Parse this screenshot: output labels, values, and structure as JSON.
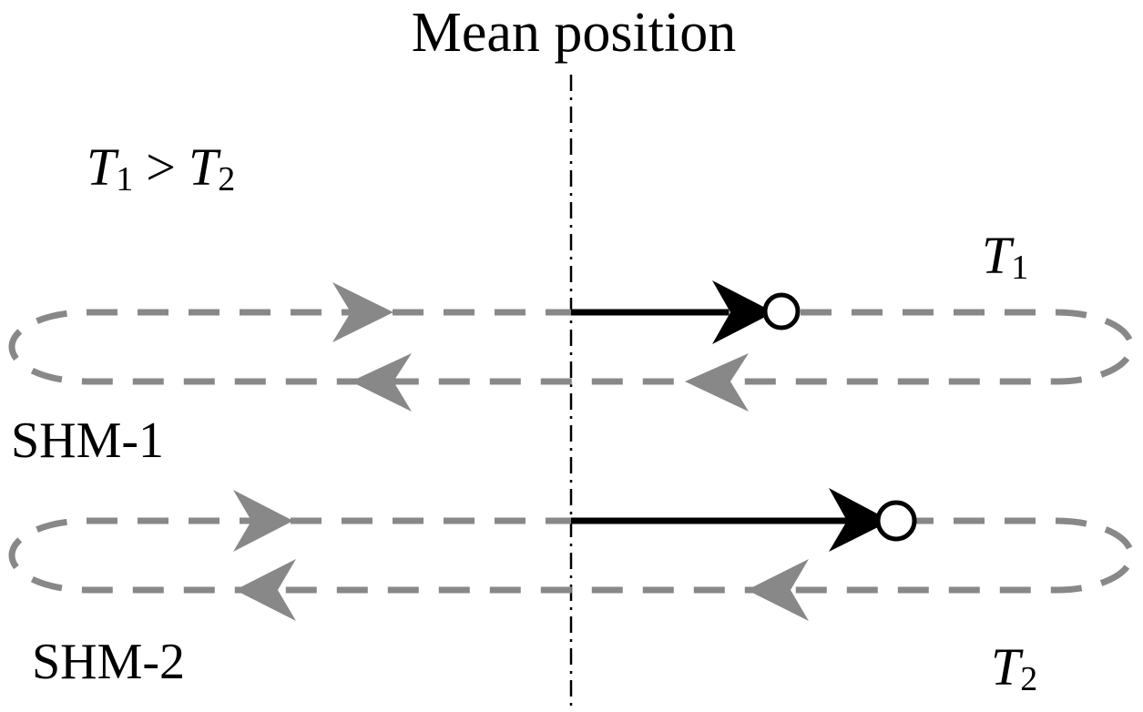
{
  "title": "Mean position",
  "relation": {
    "t1": "T",
    "t1_sub": "1",
    "op": ">",
    "t2": "T",
    "t2_sub": "2"
  },
  "shm1": {
    "name": "SHM-1",
    "period": "T",
    "period_sub": "1"
  },
  "shm2": {
    "name": "SHM-2",
    "period": "T",
    "period_sub": "2"
  },
  "colors": {
    "path": "#888888",
    "arrow": "#000000",
    "axis": "#000000"
  }
}
